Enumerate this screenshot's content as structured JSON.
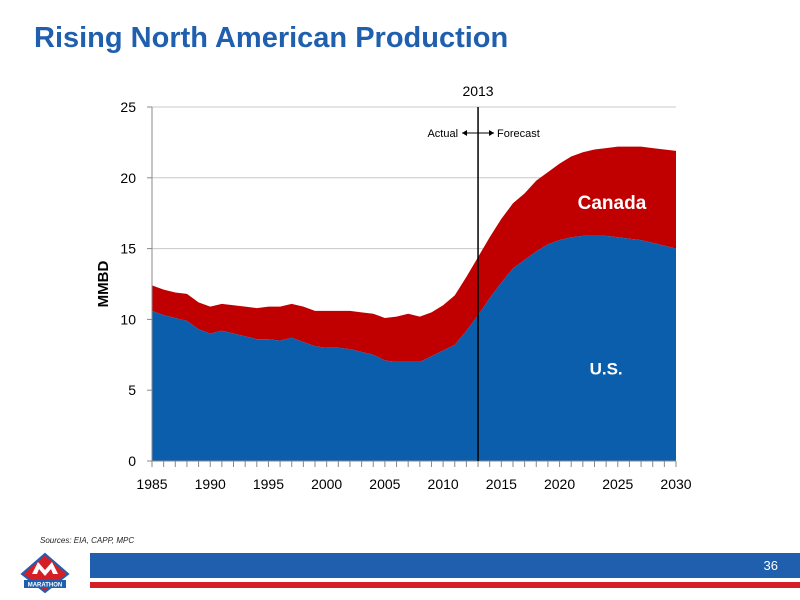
{
  "slide": {
    "title": "Rising North American Production",
    "sources": "Sources:  EIA, CAPP, MPC",
    "page_number": "36",
    "logo_text": "MARATHON"
  },
  "colors": {
    "title": "#1f5fae",
    "us": "#0a5eab",
    "canada": "#c00000",
    "footer_blue": "#1f5fae",
    "footer_red": "#d41f26"
  },
  "chart_data": {
    "type": "area",
    "stacked": true,
    "ylabel": "MMBD",
    "xlim": [
      1985,
      2030
    ],
    "ylim": [
      0,
      25
    ],
    "x_ticks": [
      1985,
      1990,
      1995,
      2000,
      2005,
      2010,
      2015,
      2020,
      2025,
      2030
    ],
    "y_ticks": [
      0,
      5,
      10,
      15,
      20,
      25
    ],
    "grid": true,
    "marker": {
      "x": 2013,
      "label": "2013",
      "left_label": "Actual",
      "right_label": "Forecast"
    },
    "x": [
      1985,
      1986,
      1987,
      1988,
      1989,
      1990,
      1991,
      1992,
      1993,
      1994,
      1995,
      1996,
      1997,
      1998,
      1999,
      2000,
      2001,
      2002,
      2003,
      2004,
      2005,
      2006,
      2007,
      2008,
      2009,
      2010,
      2011,
      2012,
      2013,
      2014,
      2015,
      2016,
      2017,
      2018,
      2019,
      2020,
      2021,
      2022,
      2023,
      2024,
      2025,
      2026,
      2027,
      2028,
      2029,
      2030
    ],
    "series": [
      {
        "name": "U.S.",
        "color": "#0a5eab",
        "values": [
          10.6,
          10.3,
          10.1,
          9.9,
          9.3,
          9.0,
          9.2,
          9.0,
          8.8,
          8.6,
          8.6,
          8.5,
          8.7,
          8.4,
          8.1,
          8.0,
          8.0,
          7.9,
          7.7,
          7.5,
          7.1,
          7.0,
          7.0,
          7.0,
          7.4,
          7.8,
          8.2,
          9.2,
          10.3,
          11.5,
          12.6,
          13.6,
          14.2,
          14.8,
          15.3,
          15.6,
          15.8,
          15.9,
          15.9,
          15.9,
          15.8,
          15.7,
          15.6,
          15.4,
          15.2,
          15.0
        ]
      },
      {
        "name": "Canada",
        "color": "#c00000",
        "values": [
          1.8,
          1.8,
          1.8,
          1.9,
          1.9,
          1.9,
          1.9,
          2.0,
          2.1,
          2.2,
          2.3,
          2.4,
          2.4,
          2.5,
          2.5,
          2.6,
          2.6,
          2.7,
          2.8,
          2.9,
          3.0,
          3.2,
          3.4,
          3.2,
          3.1,
          3.2,
          3.5,
          3.8,
          4.1,
          4.3,
          4.5,
          4.6,
          4.7,
          5.0,
          5.1,
          5.4,
          5.7,
          5.9,
          6.1,
          6.2,
          6.4,
          6.5,
          6.6,
          6.7,
          6.8,
          6.9
        ]
      }
    ]
  }
}
